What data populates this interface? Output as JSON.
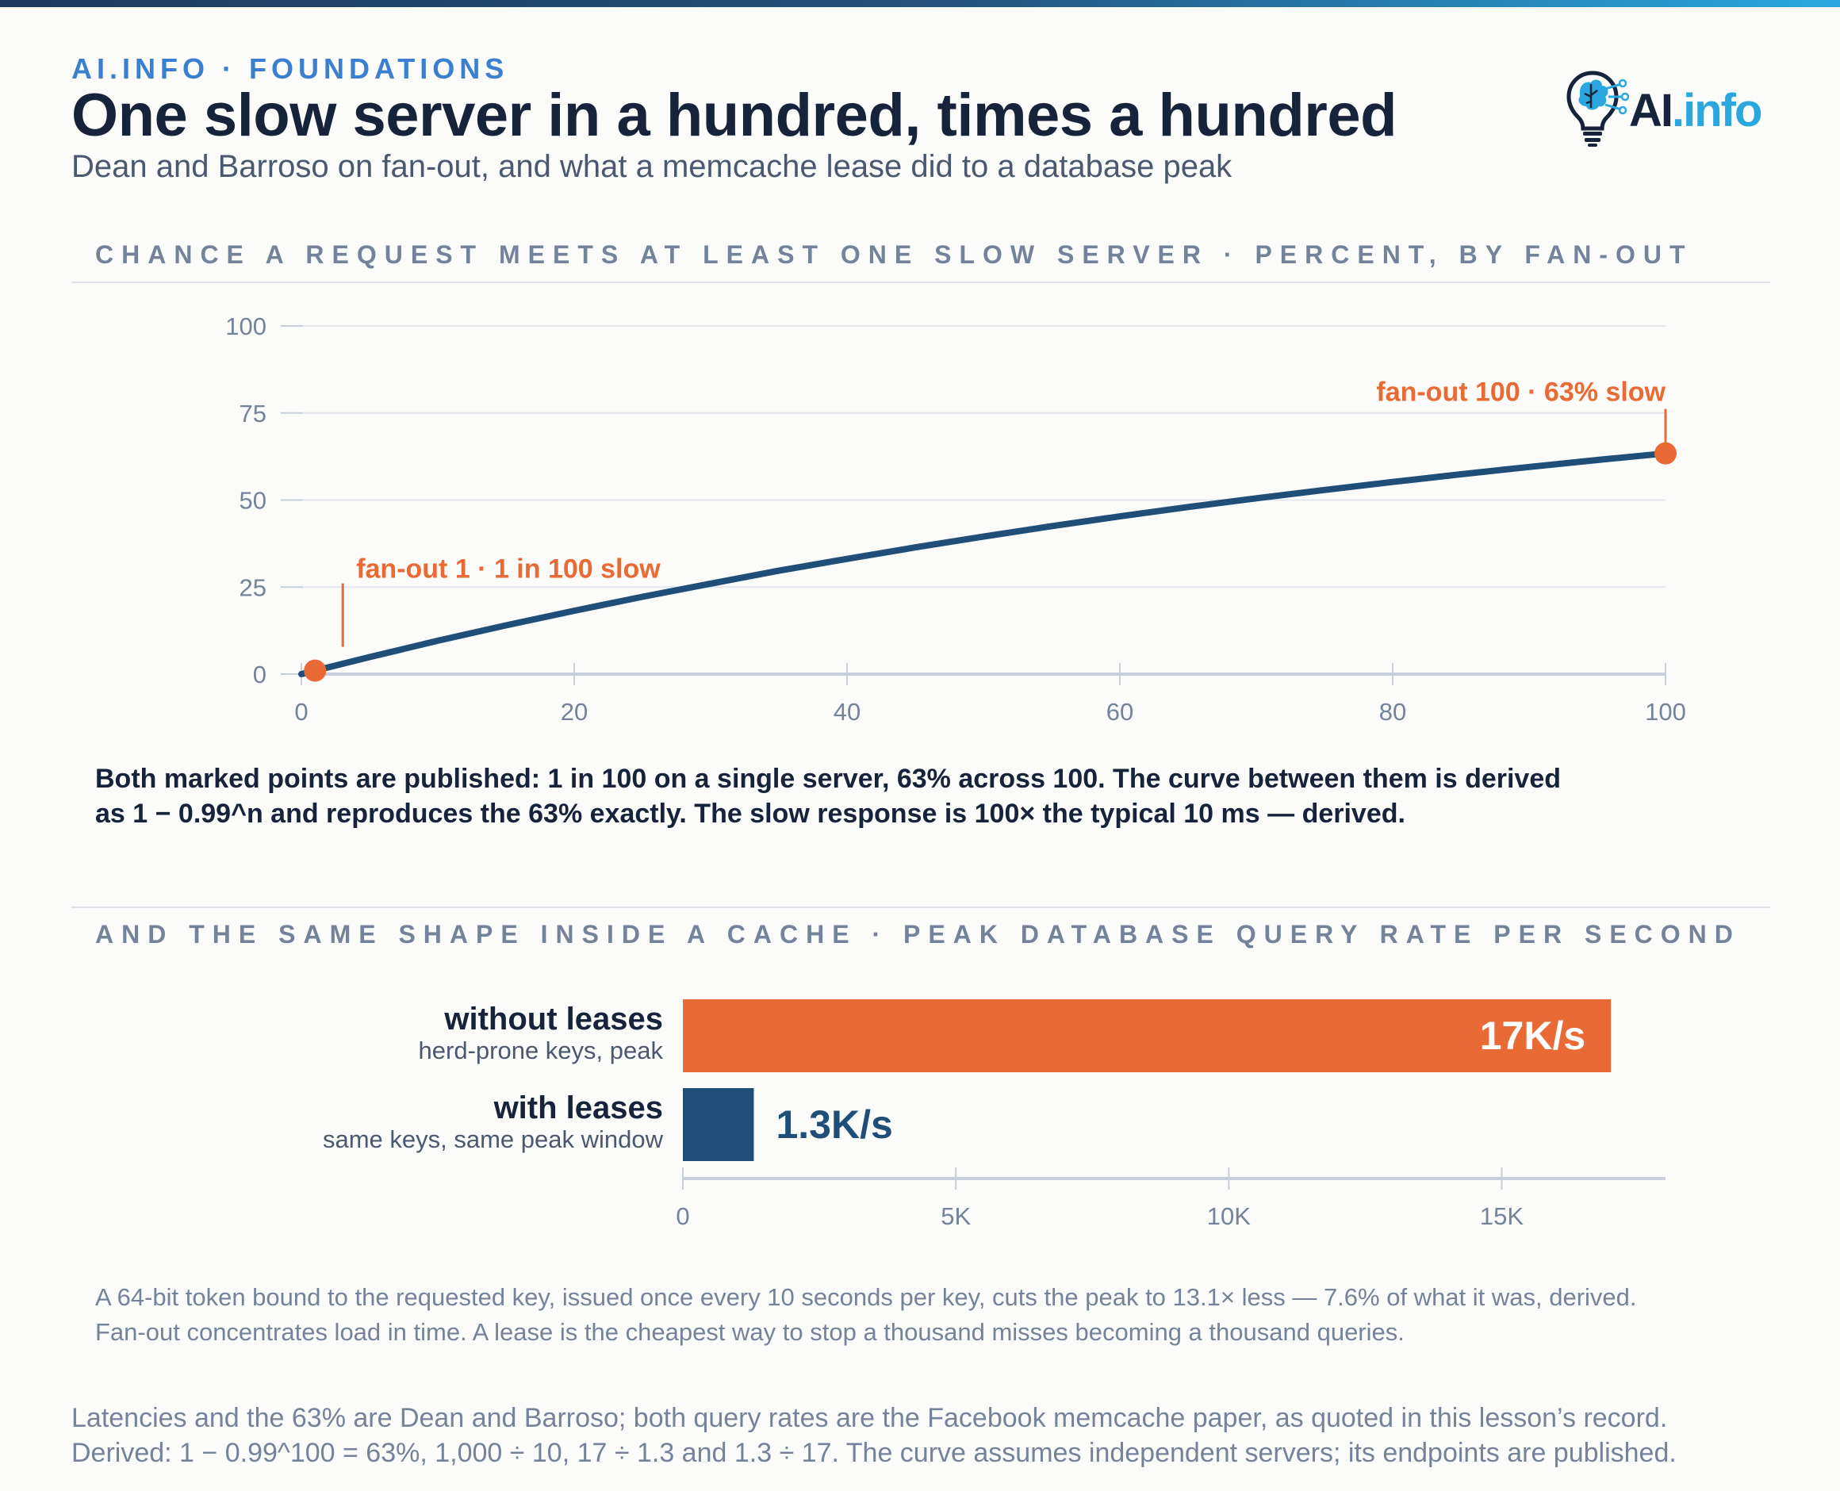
{
  "header": {
    "kicker": "AI.INFO · FOUNDATIONS",
    "title": "One slow server in a hundred, times a hundred",
    "subtitle": "Dean and Barroso on fan-out, and what a memcache lease did to a database peak"
  },
  "logo": {
    "brand_ai": "AI",
    "brand_info": ".info",
    "icon": "brain-lightbulb-icon"
  },
  "colors": {
    "navy": "#1f4e79",
    "orange": "#e96a35",
    "accent_blue": "#2aa7de",
    "text_dark": "#17233a",
    "muted": "#75839a"
  },
  "chart_data": [
    {
      "type": "line",
      "title": "CHANCE A REQUEST MEETS AT LEAST ONE SLOW SERVER · PERCENT, BY FAN-OUT",
      "xlabel": "",
      "ylabel": "",
      "xlim": [
        0,
        100
      ],
      "ylim": [
        0,
        100
      ],
      "x_ticks": [
        0,
        20,
        40,
        60,
        80,
        100
      ],
      "y_ticks": [
        0,
        25,
        50,
        75,
        100
      ],
      "grid": true,
      "series": [
        {
          "x": [
            1,
            5,
            10,
            15,
            20,
            25,
            30,
            35,
            40,
            45,
            50,
            55,
            60,
            65,
            70,
            75,
            80,
            85,
            90,
            95,
            100
          ],
          "values": [
            1.0,
            4.9,
            9.6,
            14.0,
            18.2,
            22.2,
            26.0,
            29.7,
            33.1,
            36.4,
            39.5,
            42.5,
            45.3,
            48.0,
            50.5,
            52.9,
            55.2,
            57.4,
            59.5,
            61.5,
            63.4
          ]
        }
      ],
      "annotations": [
        {
          "x": 1,
          "y": 1,
          "text": "fan-out 1 · 1 in 100 slow"
        },
        {
          "x": 100,
          "y": 63.4,
          "text": "fan-out 100 · 63% slow"
        }
      ]
    },
    {
      "type": "bar",
      "orientation": "horizontal",
      "title": "AND THE SAME SHAPE INSIDE A CACHE · PEAK DATABASE QUERY RATE PER SECOND",
      "categories": [
        "without leases",
        "with leases"
      ],
      "sublabels": [
        "herd-prone keys, peak",
        "same keys, same peak window"
      ],
      "values": [
        17000,
        1300
      ],
      "value_labels": [
        "17K/s",
        "1.3K/s"
      ],
      "x_ticks": [
        0,
        5000,
        10000,
        15000
      ],
      "x_tick_labels": [
        "0",
        "5K",
        "10K",
        "15K"
      ],
      "xlim": [
        0,
        18000
      ]
    }
  ],
  "notes": {
    "line_note_1": "Both marked points are published: 1 in 100 on a single server, 63% across 100. The curve between them is derived",
    "line_note_2": "as 1 − 0.99^n and reproduces the 63% exactly. The slow response is 100× the typical 10 ms — derived.",
    "bar_note_1": "A 64-bit token bound to the requested key, issued once every 10 seconds per key, cuts the peak to 13.1× less — 7.6% of what it was, derived.",
    "bar_note_2": "Fan-out concentrates load in time. A lease is the cheapest way to stop a thousand misses becoming a thousand queries."
  },
  "footer": {
    "line1": "Latencies and the 63% are Dean and Barroso; both query rates are the Facebook memcache paper, as quoted in this lesson’s record.",
    "line2": "Derived: 1 − 0.99^100 = 63%, 1,000 ÷ 10, 17 ÷ 1.3 and 1.3 ÷ 17. The curve assumes independent servers; its endpoints are published."
  }
}
